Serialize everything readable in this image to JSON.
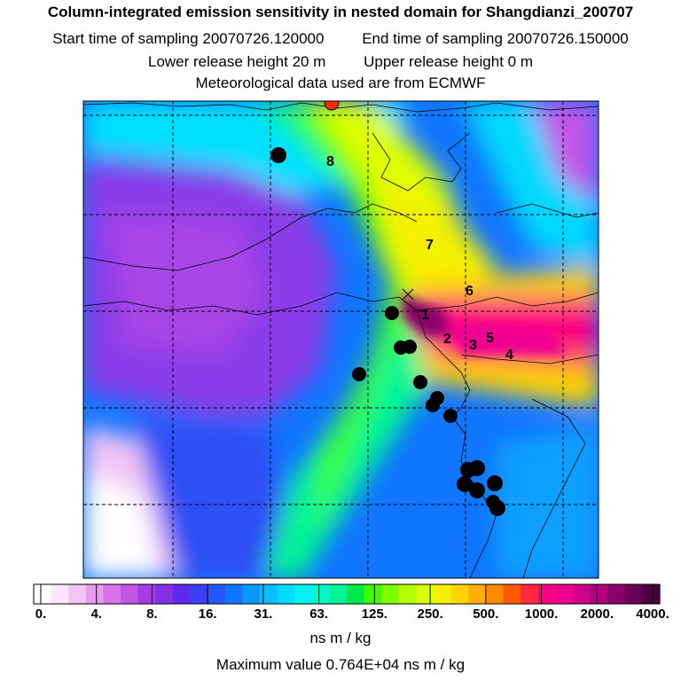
{
  "title": "Column-integrated emission sensitivity in nested domain for Shangdianzi_200707",
  "sampling": {
    "start_label": "Start time of sampling",
    "start_value": "20070726.120000",
    "end_label": "End time of sampling",
    "end_value": "20070726.150000"
  },
  "release": {
    "lower_label": "Lower release height",
    "lower_value": "20 m",
    "upper_label": "Upper release height",
    "upper_value": "0 m"
  },
  "meteo": "Meteorological data used are from ECMWF",
  "map_labels": [
    "1",
    "2",
    "3",
    "4",
    "5",
    "6",
    "7",
    "8"
  ],
  "colorbar": {
    "ticks": [
      "0.",
      "4.",
      "8.",
      "16.",
      "31.",
      "63.",
      "125.",
      "250.",
      "500.",
      "1000.",
      "2000.",
      "4000."
    ],
    "unit": "ns m / kg",
    "colors": [
      "#ffffff",
      "#fbe6fb",
      "#f2c4f5",
      "#e79cef",
      "#d873ea",
      "#c255e6",
      "#a53de3",
      "#8430e6",
      "#5c2aee",
      "#3b3ff5",
      "#2257ff",
      "#1075ff",
      "#0a98ff",
      "#0bbcff",
      "#00dcff",
      "#00f2f2",
      "#00f7c8",
      "#00f596",
      "#00e84a",
      "#3dff00",
      "#7dff00",
      "#b4ff00",
      "#dcff00",
      "#f4f000",
      "#ffd400",
      "#ffae00",
      "#ff8a00",
      "#ff5a00",
      "#ff2a40",
      "#ff0080",
      "#f00090",
      "#d0008a",
      "#b00080",
      "#8c006a",
      "#6c0058",
      "#4a003c"
    ]
  },
  "maximum": "Maximum value  0.764E+04 ns m / kg"
}
